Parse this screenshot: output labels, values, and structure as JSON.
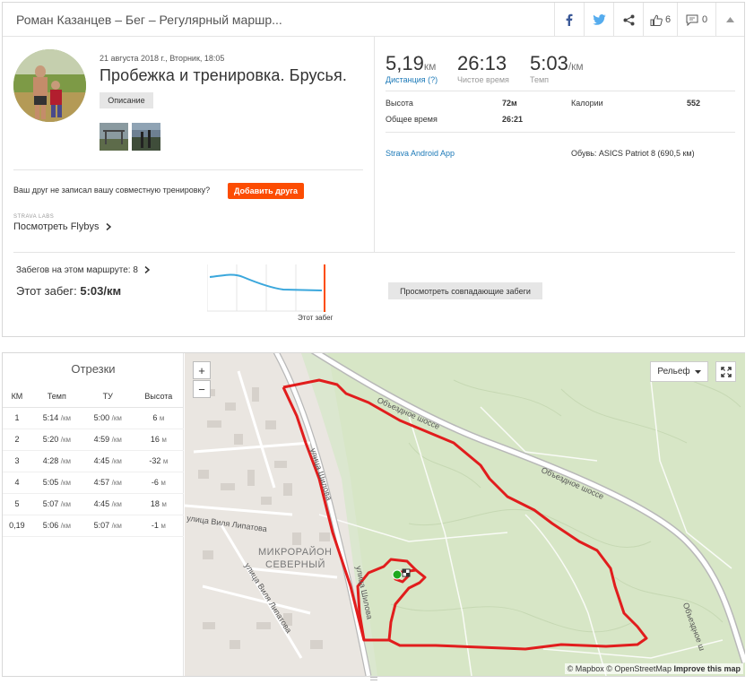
{
  "header": {
    "title": "Роман Казанцев – Бег – Регулярный маршр...",
    "kudos_count": "6",
    "comments_count": "0"
  },
  "activity": {
    "date": "21 августа 2018 г., Вторник, 18:05",
    "title": "Пробежка и тренировка. Брусья.",
    "description_button": "Описание",
    "friend_prompt": "Ваш друг не записал вашу совместную тренировку?",
    "add_friend_button": "Добавить друга",
    "labs_label": "STRAVA LABS",
    "flybys_link": "Посмотреть Flybys"
  },
  "stats": {
    "distance_value": "5,19",
    "distance_unit": "км",
    "distance_label": "Дистанция (?)",
    "moving_time_value": "26:13",
    "moving_time_label": "Чистое время",
    "pace_value": "5:03",
    "pace_unit": "/км",
    "pace_label": "Темп",
    "elevation_label": "Высота",
    "elevation_value": "72м",
    "calories_label": "Калории",
    "calories_value": "552",
    "elapsed_label": "Общее время",
    "elapsed_value": "26:21",
    "device": "Strava Android App",
    "shoes": "Обувь: ASICS Patriot 8 (690,5 км)"
  },
  "route": {
    "runs_count_text": "Забегов на этом маршруте: 8",
    "this_run_prefix": "Этот забег:",
    "this_run_pace": "5:03/км",
    "this_run_label": "Этот забег",
    "compare_button": "Просмотреть совпадающие забеги"
  },
  "splits": {
    "title": "Отрезки",
    "columns": [
      "КМ",
      "Темп",
      "ТУ",
      "Высота"
    ],
    "rows": [
      {
        "km": "1",
        "pace": "5:14",
        "gap": "5:00",
        "elev": "6",
        "unit": "/км",
        "eunit": "м"
      },
      {
        "km": "2",
        "pace": "5:20",
        "gap": "4:59",
        "elev": "16",
        "unit": "/км",
        "eunit": "м"
      },
      {
        "km": "3",
        "pace": "4:28",
        "gap": "4:45",
        "elev": "-32",
        "unit": "/км",
        "eunit": "м"
      },
      {
        "km": "4",
        "pace": "5:05",
        "gap": "4:57",
        "elev": "-6",
        "unit": "/км",
        "eunit": "м"
      },
      {
        "km": "5",
        "pace": "5:07",
        "gap": "4:45",
        "elev": "18",
        "unit": "/км",
        "eunit": "м"
      },
      {
        "km": "0,19",
        "pace": "5:06",
        "gap": "5:07",
        "elev": "-1",
        "unit": "/км",
        "eunit": "м"
      }
    ]
  },
  "map": {
    "zoom_in": "+",
    "zoom_out": "−",
    "layer_button": "Рельеф",
    "attribution_prefix": "© Mapbox © OpenStreetMap",
    "attribution_link": "Improve this map",
    "labels": {
      "bypass1": "Объездное шоссе",
      "bypass2": "Объездное шоссе",
      "bypass3": "Объездное ш",
      "shilova": "улица Шилова",
      "shilova2": "улица Шилова",
      "lipatova1": "улица Виля Липатова",
      "lipatova2": "улица Виля Липатова",
      "district": "МИКРОРАЙОН",
      "district2": "СЕВЕРНЫЙ"
    }
  },
  "colors": {
    "accent": "#fc4c02",
    "link": "#1d7ab8",
    "route_line": "#e11d1d",
    "pace_line": "#3aa7dc"
  }
}
